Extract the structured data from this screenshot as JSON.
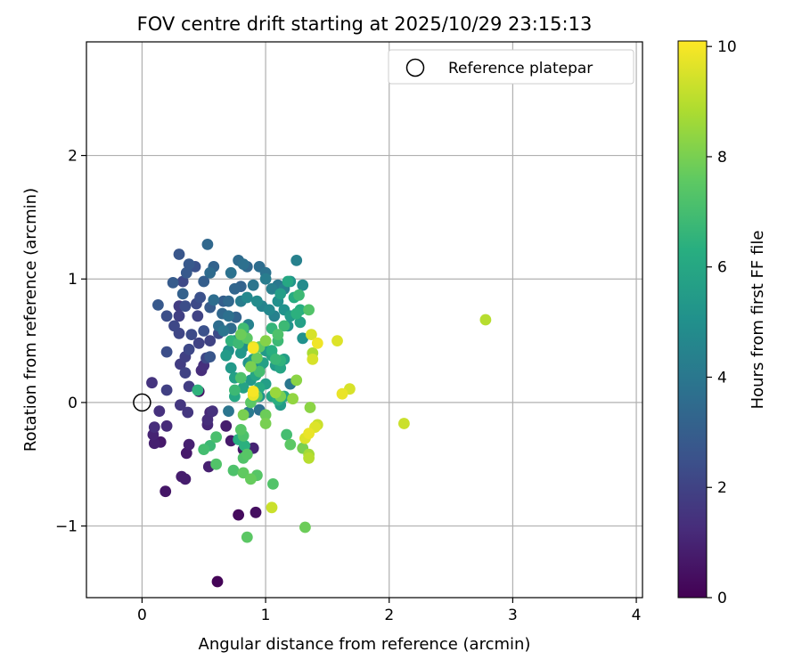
{
  "chart_data": {
    "type": "scatter",
    "title": "FOV centre drift starting at 2025/10/29 23:15:13",
    "xlabel": "Angular distance from reference (arcmin)",
    "ylabel": "Rotation from reference (arcmin)",
    "xlim": [
      -0.45,
      4.05
    ],
    "ylim": [
      -1.58,
      2.92
    ],
    "xticks": [
      0,
      1,
      2,
      3,
      4
    ],
    "yticks": [
      -1,
      0,
      1,
      2
    ],
    "xtick_labels": [
      "0",
      "1",
      "2",
      "3",
      "4"
    ],
    "ytick_labels": [
      "−1",
      "0",
      "1",
      "2"
    ],
    "grid": true,
    "colorbar": {
      "label": "Hours from first FF file",
      "range": [
        0,
        10.1
      ],
      "ticks": [
        0,
        2,
        4,
        6,
        8,
        10
      ],
      "tick_labels": [
        "0",
        "2",
        "4",
        "6",
        "8",
        "10"
      ],
      "colormap": "viridis"
    },
    "reference": {
      "label": "Reference platepar",
      "x": 0,
      "y": 0
    },
    "legend": {
      "position": "top-right",
      "entry": "Reference platepar"
    },
    "points": [
      [
        0.61,
        -1.45,
        0.1
      ],
      [
        0.78,
        -0.91,
        0.3
      ],
      [
        0.92,
        -0.89,
        0.4
      ],
      [
        0.19,
        -0.72,
        0.6
      ],
      [
        0.32,
        -0.6,
        0.8
      ],
      [
        0.35,
        -0.62,
        0.8
      ],
      [
        0.54,
        -0.52,
        0.9
      ],
      [
        0.36,
        -0.41,
        0.7
      ],
      [
        0.38,
        -0.34,
        0.9
      ],
      [
        0.1,
        -0.33,
        0.9
      ],
      [
        0.15,
        -0.32,
        0.7
      ],
      [
        0.09,
        -0.26,
        1.0
      ],
      [
        0.1,
        -0.2,
        1.3
      ],
      [
        0.2,
        -0.19,
        1.2
      ],
      [
        0.53,
        -0.18,
        1.1
      ],
      [
        0.53,
        -0.14,
        1.3
      ],
      [
        0.14,
        -0.07,
        1.4
      ],
      [
        0.37,
        -0.08,
        1.6
      ],
      [
        0.57,
        -0.07,
        1.4
      ],
      [
        0.31,
        -0.02,
        1.6
      ],
      [
        0.08,
        0.16,
        1.5
      ],
      [
        0.2,
        0.1,
        1.9
      ],
      [
        0.46,
        0.09,
        0.5
      ],
      [
        0.38,
        0.13,
        1.8
      ],
      [
        0.35,
        0.24,
        2.0
      ],
      [
        0.31,
        0.31,
        1.8
      ],
      [
        0.35,
        0.37,
        1.9
      ],
      [
        0.48,
        0.26,
        1.3
      ],
      [
        0.5,
        0.3,
        1.4
      ],
      [
        0.38,
        0.43,
        2.2
      ],
      [
        0.2,
        0.41,
        2.4
      ],
      [
        0.3,
        0.56,
        2.1
      ],
      [
        0.4,
        0.55,
        2.3
      ],
      [
        0.46,
        0.48,
        2.0
      ],
      [
        0.5,
        0.58,
        2.5
      ],
      [
        0.55,
        0.37,
        2.7
      ],
      [
        0.52,
        0.36,
        2.2
      ],
      [
        0.62,
        0.56,
        2.3
      ],
      [
        0.55,
        0.5,
        2.0
      ],
      [
        0.26,
        0.62,
        2.2
      ],
      [
        0.2,
        0.7,
        2.4
      ],
      [
        0.3,
        0.7,
        1.9
      ],
      [
        0.35,
        0.78,
        2.4
      ],
      [
        0.3,
        0.78,
        1.8
      ],
      [
        0.45,
        0.7,
        2.0
      ],
      [
        0.44,
        0.8,
        2.3
      ],
      [
        0.47,
        0.85,
        2.5
      ],
      [
        0.13,
        0.79,
        2.8
      ],
      [
        0.55,
        0.77,
        2.9
      ],
      [
        0.25,
        0.97,
        2.9
      ],
      [
        0.33,
        0.88,
        3.1
      ],
      [
        0.3,
        1.2,
        2.7
      ],
      [
        0.38,
        1.12,
        2.8
      ],
      [
        0.43,
        1.1,
        2.5
      ],
      [
        0.36,
        1.05,
        2.8
      ],
      [
        0.33,
        0.98,
        2.2
      ],
      [
        0.5,
        0.98,
        3.0
      ],
      [
        0.53,
        1.28,
        3.4
      ],
      [
        0.58,
        1.1,
        3.2
      ],
      [
        0.55,
        1.05,
        3.5
      ],
      [
        0.58,
        0.83,
        3.6
      ],
      [
        0.66,
        0.82,
        3.0
      ],
      [
        0.7,
        0.82,
        3.4
      ],
      [
        0.72,
        1.05,
        3.8
      ],
      [
        0.78,
        1.15,
        3.5
      ],
      [
        0.82,
        1.12,
        3.7
      ],
      [
        0.85,
        1.1,
        3.4
      ],
      [
        0.75,
        0.92,
        3.3
      ],
      [
        0.8,
        0.94,
        3.2
      ],
      [
        0.9,
        0.95,
        3.9
      ],
      [
        0.95,
        1.1,
        3.6
      ],
      [
        1.0,
        1.05,
        3.8
      ],
      [
        1.0,
        1.0,
        4.2
      ],
      [
        1.05,
        0.92,
        4.3
      ],
      [
        1.1,
        0.95,
        4.0
      ],
      [
        1.15,
        0.92,
        4.4
      ],
      [
        1.25,
        1.15,
        4.4
      ],
      [
        1.3,
        0.95,
        4.8
      ],
      [
        1.2,
        0.98,
        5.2
      ],
      [
        0.65,
        0.72,
        3.4
      ],
      [
        0.7,
        0.7,
        3.7
      ],
      [
        0.76,
        0.69,
        3.2
      ],
      [
        0.72,
        0.6,
        3.5
      ],
      [
        0.62,
        0.62,
        3.6
      ],
      [
        0.66,
        0.58,
        3.9
      ],
      [
        0.75,
        0.5,
        4.3
      ],
      [
        0.82,
        0.58,
        4.1
      ],
      [
        0.86,
        0.63,
        4.4
      ],
      [
        0.8,
        0.82,
        4.2
      ],
      [
        0.85,
        0.85,
        4.7
      ],
      [
        0.93,
        0.82,
        4.8
      ],
      [
        0.97,
        0.78,
        4.5
      ],
      [
        1.03,
        0.75,
        4.7
      ],
      [
        1.07,
        0.7,
        4.4
      ],
      [
        1.1,
        0.82,
        5.0
      ],
      [
        1.15,
        0.75,
        5.1
      ],
      [
        1.18,
        0.62,
        5.2
      ],
      [
        1.2,
        0.7,
        5.5
      ],
      [
        1.12,
        0.88,
        5.6
      ],
      [
        1.18,
        0.98,
        6.0
      ],
      [
        1.23,
        0.85,
        6.2
      ],
      [
        1.28,
        0.75,
        6.3
      ],
      [
        1.3,
        0.52,
        5.1
      ],
      [
        0.72,
        0.28,
        5.4
      ],
      [
        0.8,
        0.4,
        5.3
      ],
      [
        0.82,
        0.45,
        5.0
      ],
      [
        0.86,
        0.32,
        5.2
      ],
      [
        0.9,
        0.35,
        5.5
      ],
      [
        0.95,
        0.28,
        5.0
      ],
      [
        0.98,
        0.32,
        5.7
      ],
      [
        1.0,
        0.42,
        5.4
      ],
      [
        1.05,
        0.38,
        5.8
      ],
      [
        1.08,
        0.3,
        5.5
      ],
      [
        1.12,
        0.28,
        5.9
      ],
      [
        1.15,
        0.35,
        5.6
      ],
      [
        0.75,
        0.2,
        5.7
      ],
      [
        0.82,
        0.12,
        5.8
      ],
      [
        0.88,
        0.18,
        5.4
      ],
      [
        0.92,
        0.22,
        5.9
      ],
      [
        0.95,
        0.12,
        6.1
      ],
      [
        1.0,
        0.15,
        5.6
      ],
      [
        1.05,
        0.05,
        5.9
      ],
      [
        1.1,
        0.02,
        6.3
      ],
      [
        1.15,
        0.05,
        6.0
      ],
      [
        1.2,
        0.15,
        4.0
      ],
      [
        1.12,
        -0.02,
        5.5
      ],
      [
        0.95,
        0.05,
        5.2
      ],
      [
        0.86,
        -0.08,
        4.1
      ],
      [
        0.95,
        -0.06,
        3.7
      ],
      [
        0.7,
        -0.07,
        3.9
      ],
      [
        0.75,
        0.05,
        6.0
      ],
      [
        0.78,
        -0.3,
        6.3
      ],
      [
        0.83,
        -0.35,
        6.4
      ],
      [
        0.82,
        -0.27,
        7.2
      ],
      [
        0.8,
        -0.22,
        7.4
      ],
      [
        0.72,
        -0.31,
        0.7
      ],
      [
        0.82,
        -0.38,
        0.6
      ],
      [
        0.9,
        -0.37,
        1.0
      ],
      [
        0.93,
        -0.59,
        7.4
      ],
      [
        0.88,
        -0.62,
        7.7
      ],
      [
        0.82,
        -0.57,
        7.6
      ],
      [
        0.74,
        -0.55,
        7.2
      ],
      [
        0.82,
        -0.45,
        7.3
      ],
      [
        0.85,
        -0.42,
        7.4
      ],
      [
        0.6,
        -0.5,
        7.3
      ],
      [
        0.6,
        -0.28,
        7.1
      ],
      [
        0.55,
        -0.35,
        6.8
      ],
      [
        0.5,
        -0.38,
        7.0
      ],
      [
        1.06,
        -0.66,
        7.3
      ],
      [
        0.85,
        -1.09,
        7.5
      ],
      [
        1.32,
        -1.01,
        7.8
      ],
      [
        1.05,
        -0.85,
        9.3
      ],
      [
        1.17,
        -0.26,
        7.0
      ],
      [
        1.2,
        -0.34,
        7.5
      ],
      [
        1.3,
        -0.37,
        8.0
      ],
      [
        1.35,
        -0.42,
        8.7
      ],
      [
        1.35,
        -0.45,
        9.0
      ],
      [
        1.32,
        -0.29,
        9.6
      ],
      [
        1.35,
        -0.25,
        9.8
      ],
      [
        1.4,
        -0.2,
        9.6
      ],
      [
        1.42,
        -0.18,
        9.3
      ],
      [
        1.36,
        -0.04,
        8.3
      ],
      [
        1.22,
        0.03,
        8.4
      ],
      [
        1.0,
        -0.1,
        7.8
      ],
      [
        1.0,
        -0.17,
        8.0
      ],
      [
        0.82,
        -0.1,
        8.0
      ],
      [
        0.88,
        0.0,
        7.5
      ],
      [
        0.93,
        0.05,
        7.4
      ],
      [
        0.9,
        0.06,
        9.8
      ],
      [
        0.9,
        0.09,
        10.0
      ],
      [
        1.08,
        0.08,
        8.5
      ],
      [
        1.12,
        0.05,
        8.0
      ],
      [
        1.25,
        0.18,
        8.3
      ],
      [
        0.75,
        0.1,
        6.8
      ],
      [
        0.8,
        0.2,
        7.2
      ],
      [
        0.95,
        0.25,
        7.0
      ],
      [
        0.88,
        0.29,
        8.0
      ],
      [
        0.93,
        0.36,
        7.7
      ],
      [
        0.95,
        0.45,
        7.6
      ],
      [
        1.0,
        0.5,
        8.2
      ],
      [
        1.05,
        0.42,
        6.3
      ],
      [
        0.9,
        0.45,
        9.5
      ],
      [
        0.9,
        0.44,
        10.0
      ],
      [
        0.85,
        0.52,
        7.5
      ],
      [
        0.8,
        0.55,
        7.8
      ],
      [
        0.78,
        0.48,
        6.8
      ],
      [
        0.82,
        0.6,
        6.9
      ],
      [
        0.72,
        0.5,
        6.5
      ],
      [
        0.68,
        0.38,
        5.5
      ],
      [
        0.7,
        0.42,
        5.0
      ],
      [
        1.05,
        0.6,
        6.6
      ],
      [
        1.15,
        0.62,
        6.8
      ],
      [
        1.1,
        0.55,
        7.2
      ],
      [
        1.1,
        0.5,
        6.8
      ],
      [
        1.12,
        0.34,
        6.5
      ],
      [
        1.08,
        0.35,
        6.7
      ],
      [
        1.25,
        0.72,
        6.4
      ],
      [
        1.27,
        0.87,
        6.8
      ],
      [
        1.28,
        0.65,
        5.7
      ],
      [
        1.35,
        0.75,
        7.3
      ],
      [
        1.38,
        0.4,
        8.8
      ],
      [
        1.42,
        0.48,
        9.9
      ],
      [
        1.37,
        0.55,
        9.5
      ],
      [
        1.38,
        0.35,
        9.5
      ],
      [
        1.58,
        0.5,
        9.6
      ],
      [
        1.62,
        0.07,
        9.8
      ],
      [
        1.68,
        0.11,
        9.5
      ],
      [
        2.12,
        -0.17,
        9.3
      ],
      [
        2.78,
        0.67,
        9.0
      ],
      [
        0.45,
        0.1,
        6.5
      ],
      [
        0.68,
        -0.19,
        0.8
      ],
      [
        0.55,
        -0.08,
        1.1
      ]
    ]
  }
}
